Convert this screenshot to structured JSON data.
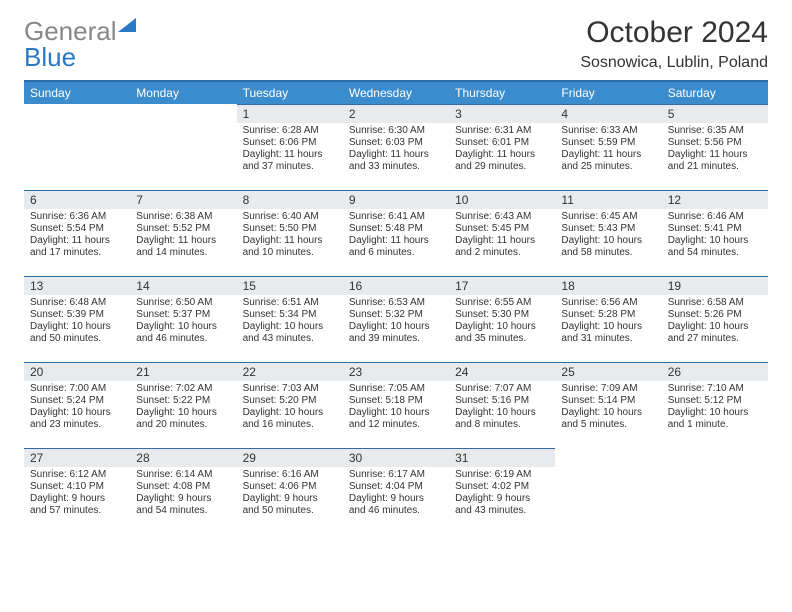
{
  "brand": {
    "part1": "General",
    "part2": "Blue"
  },
  "title": "October 2024",
  "location": "Sosnowica, Lublin, Poland",
  "colors": {
    "header_bg": "#3b8ccc",
    "header_border": "#2b6ea8",
    "daynum_bg": "#e8ebed",
    "text": "#333333",
    "logo_grey": "#888888",
    "logo_blue": "#2b78c5"
  },
  "dow": [
    "Sunday",
    "Monday",
    "Tuesday",
    "Wednesday",
    "Thursday",
    "Friday",
    "Saturday"
  ],
  "firstDayOffset": 2,
  "daysInMonth": 31,
  "days": {
    "1": {
      "sr": "6:28 AM",
      "ss": "6:06 PM",
      "dl": "11 hours and 37 minutes."
    },
    "2": {
      "sr": "6:30 AM",
      "ss": "6:03 PM",
      "dl": "11 hours and 33 minutes."
    },
    "3": {
      "sr": "6:31 AM",
      "ss": "6:01 PM",
      "dl": "11 hours and 29 minutes."
    },
    "4": {
      "sr": "6:33 AM",
      "ss": "5:59 PM",
      "dl": "11 hours and 25 minutes."
    },
    "5": {
      "sr": "6:35 AM",
      "ss": "5:56 PM",
      "dl": "11 hours and 21 minutes."
    },
    "6": {
      "sr": "6:36 AM",
      "ss": "5:54 PM",
      "dl": "11 hours and 17 minutes."
    },
    "7": {
      "sr": "6:38 AM",
      "ss": "5:52 PM",
      "dl": "11 hours and 14 minutes."
    },
    "8": {
      "sr": "6:40 AM",
      "ss": "5:50 PM",
      "dl": "11 hours and 10 minutes."
    },
    "9": {
      "sr": "6:41 AM",
      "ss": "5:48 PM",
      "dl": "11 hours and 6 minutes."
    },
    "10": {
      "sr": "6:43 AM",
      "ss": "5:45 PM",
      "dl": "11 hours and 2 minutes."
    },
    "11": {
      "sr": "6:45 AM",
      "ss": "5:43 PM",
      "dl": "10 hours and 58 minutes."
    },
    "12": {
      "sr": "6:46 AM",
      "ss": "5:41 PM",
      "dl": "10 hours and 54 minutes."
    },
    "13": {
      "sr": "6:48 AM",
      "ss": "5:39 PM",
      "dl": "10 hours and 50 minutes."
    },
    "14": {
      "sr": "6:50 AM",
      "ss": "5:37 PM",
      "dl": "10 hours and 46 minutes."
    },
    "15": {
      "sr": "6:51 AM",
      "ss": "5:34 PM",
      "dl": "10 hours and 43 minutes."
    },
    "16": {
      "sr": "6:53 AM",
      "ss": "5:32 PM",
      "dl": "10 hours and 39 minutes."
    },
    "17": {
      "sr": "6:55 AM",
      "ss": "5:30 PM",
      "dl": "10 hours and 35 minutes."
    },
    "18": {
      "sr": "6:56 AM",
      "ss": "5:28 PM",
      "dl": "10 hours and 31 minutes."
    },
    "19": {
      "sr": "6:58 AM",
      "ss": "5:26 PM",
      "dl": "10 hours and 27 minutes."
    },
    "20": {
      "sr": "7:00 AM",
      "ss": "5:24 PM",
      "dl": "10 hours and 23 minutes."
    },
    "21": {
      "sr": "7:02 AM",
      "ss": "5:22 PM",
      "dl": "10 hours and 20 minutes."
    },
    "22": {
      "sr": "7:03 AM",
      "ss": "5:20 PM",
      "dl": "10 hours and 16 minutes."
    },
    "23": {
      "sr": "7:05 AM",
      "ss": "5:18 PM",
      "dl": "10 hours and 12 minutes."
    },
    "24": {
      "sr": "7:07 AM",
      "ss": "5:16 PM",
      "dl": "10 hours and 8 minutes."
    },
    "25": {
      "sr": "7:09 AM",
      "ss": "5:14 PM",
      "dl": "10 hours and 5 minutes."
    },
    "26": {
      "sr": "7:10 AM",
      "ss": "5:12 PM",
      "dl": "10 hours and 1 minute."
    },
    "27": {
      "sr": "6:12 AM",
      "ss": "4:10 PM",
      "dl": "9 hours and 57 minutes."
    },
    "28": {
      "sr": "6:14 AM",
      "ss": "4:08 PM",
      "dl": "9 hours and 54 minutes."
    },
    "29": {
      "sr": "6:16 AM",
      "ss": "4:06 PM",
      "dl": "9 hours and 50 minutes."
    },
    "30": {
      "sr": "6:17 AM",
      "ss": "4:04 PM",
      "dl": "9 hours and 46 minutes."
    },
    "31": {
      "sr": "6:19 AM",
      "ss": "4:02 PM",
      "dl": "9 hours and 43 minutes."
    }
  },
  "labels": {
    "sunrise": "Sunrise: ",
    "sunset": "Sunset: ",
    "daylight": "Daylight: "
  }
}
